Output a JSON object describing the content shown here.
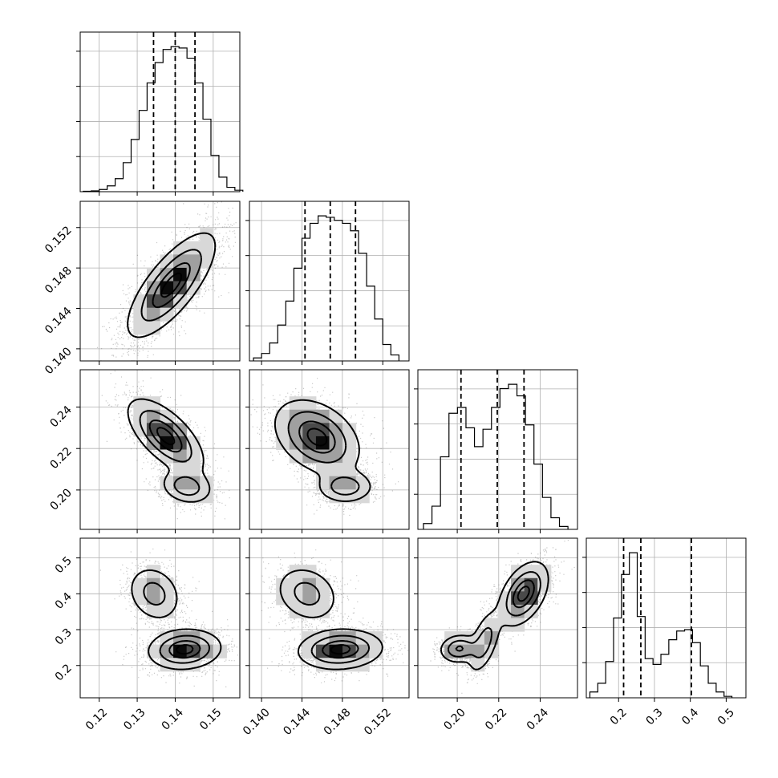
{
  "chart_data": {
    "type": "corner",
    "parameters": [
      {
        "range": [
          0.115,
          0.157
        ],
        "ticks": [
          0.12,
          0.13,
          0.14,
          0.15
        ],
        "tick_labels": [
          "0.12",
          "0.13",
          "0.14",
          "0.15"
        ],
        "quantiles": [
          0.1343,
          0.14,
          0.1452
        ],
        "hist": {
          "edges": [
            0.1158,
            0.1179,
            0.12,
            0.1221,
            0.1242,
            0.1263,
            0.1284,
            0.1305,
            0.1326,
            0.1347,
            0.1368,
            0.1389,
            0.141,
            0.1431,
            0.1452,
            0.1473,
            0.1494,
            0.1515,
            0.1536,
            0.1557,
            0.1578
          ],
          "counts": [
            0.3,
            0.6,
            1.5,
            4,
            9,
            20,
            36,
            56,
            75,
            89,
            98,
            100,
            99,
            92,
            75,
            50,
            25,
            10,
            3,
            1
          ]
        }
      },
      {
        "range": [
          0.1388,
          0.1546
        ],
        "ticks": [
          0.14,
          0.144,
          0.148,
          0.152
        ],
        "tick_labels": [
          "0.140",
          "0.144",
          "0.148",
          "0.152"
        ],
        "quantiles": [
          0.1443,
          0.1468,
          0.1493
        ],
        "hist": {
          "edges": [
            0.1392,
            0.14,
            0.1408,
            0.1416,
            0.1424,
            0.1432,
            0.144,
            0.1448,
            0.1456,
            0.1464,
            0.1472,
            0.148,
            0.1488,
            0.1496,
            0.1504,
            0.1512,
            0.152,
            0.1528,
            0.1536
          ],
          "counts": [
            2,
            5,
            12,
            24,
            40,
            62,
            82,
            92,
            97,
            96,
            94,
            92,
            87,
            72,
            50,
            28,
            11,
            4
          ]
        }
      },
      {
        "range": [
          0.181,
          0.258
        ],
        "ticks": [
          0.2,
          0.22,
          0.24
        ],
        "tick_labels": [
          "0.20",
          "0.22",
          "0.24"
        ],
        "quantiles": [
          0.2018,
          0.2193,
          0.2322
        ],
        "hist": {
          "edges": [
            0.1837,
            0.1878,
            0.1919,
            0.196,
            0.2001,
            0.2042,
            0.2083,
            0.2124,
            0.2165,
            0.2206,
            0.2247,
            0.2288,
            0.2329,
            0.237,
            0.2411,
            0.2452,
            0.2493,
            0.2534
          ],
          "counts": [
            4,
            16,
            50,
            80,
            84,
            70,
            57,
            69,
            84,
            97,
            100,
            92,
            72,
            45,
            22,
            8,
            2
          ]
        }
      },
      {
        "range": [
          0.11,
          0.555
        ],
        "ticks": [
          0.2,
          0.3,
          0.4,
          0.5
        ],
        "tick_labels": [
          "0.2",
          "0.3",
          "0.4",
          "0.5"
        ],
        "quantiles": [
          0.214,
          0.262,
          0.403
        ],
        "hist": {
          "edges": [
            0.12,
            0.142,
            0.164,
            0.186,
            0.208,
            0.23,
            0.252,
            0.274,
            0.296,
            0.318,
            0.34,
            0.362,
            0.384,
            0.406,
            0.428,
            0.45,
            0.472,
            0.494,
            0.516
          ],
          "counts": [
            4,
            10,
            25,
            55,
            85,
            100,
            56,
            27,
            23,
            30,
            40,
            46,
            47,
            38,
            22,
            10,
            4,
            1
          ]
        }
      }
    ],
    "pairs": [
      {
        "row": 1,
        "col": 0,
        "modes": [
          {
            "center": [
              0.139,
              0.1463
            ],
            "sigma": [
              0.0058,
              0.0026
            ],
            "rho": 0.75,
            "weight": 1.0
          }
        ],
        "contour_levels": [
          0.14,
          0.4,
          0.7,
          0.9
        ]
      },
      {
        "row": 2,
        "col": 0,
        "modes": [
          {
            "center": [
              0.1375,
              0.226
            ],
            "sigma": [
              0.005,
              0.009
            ],
            "rho": -0.65,
            "weight": 0.62
          },
          {
            "center": [
              0.143,
              0.2015
            ],
            "sigma": [
              0.0034,
              0.0042
            ],
            "rho": -0.2,
            "weight": 0.38
          }
        ],
        "contour_levels": [
          0.14,
          0.4,
          0.7,
          0.9
        ]
      },
      {
        "row": 2,
        "col": 1,
        "modes": [
          {
            "center": [
              0.1455,
              0.2255
            ],
            "sigma": [
              0.0021,
              0.009
            ],
            "rho": -0.35,
            "weight": 0.62
          },
          {
            "center": [
              0.1483,
              0.2015
            ],
            "sigma": [
              0.0014,
              0.004
            ],
            "rho": 0.0,
            "weight": 0.38
          }
        ],
        "contour_levels": [
          0.14,
          0.4,
          0.7,
          0.9
        ]
      },
      {
        "row": 3,
        "col": 0,
        "modes": [
          {
            "center": [
              0.1345,
              0.4
            ],
            "sigma": [
              0.0036,
              0.04
            ],
            "rho": -0.2,
            "weight": 0.35
          },
          {
            "center": [
              0.1425,
              0.245
            ],
            "sigma": [
              0.0048,
              0.028
            ],
            "rho": 0.1,
            "weight": 0.65
          }
        ],
        "contour_levels": [
          0.14,
          0.4,
          0.7,
          0.9
        ]
      },
      {
        "row": 3,
        "col": 1,
        "modes": [
          {
            "center": [
              0.1445,
              0.4
            ],
            "sigma": [
              0.0016,
              0.04
            ],
            "rho": -0.2,
            "weight": 0.35
          },
          {
            "center": [
              0.1478,
              0.245
            ],
            "sigma": [
              0.0021,
              0.028
            ],
            "rho": 0.1,
            "weight": 0.65
          }
        ],
        "contour_levels": [
          0.14,
          0.4,
          0.7,
          0.9
        ]
      },
      {
        "row": 3,
        "col": 2,
        "modes": [
          {
            "center": [
              0.201,
              0.247
            ],
            "sigma": [
              0.0048,
              0.02
            ],
            "rho": 0.1,
            "weight": 0.32
          },
          {
            "center": [
              0.213,
              0.265
            ],
            "sigma": [
              0.004,
              0.045
            ],
            "rho": 0.55,
            "weight": 0.25
          },
          {
            "center": [
              0.232,
              0.4
            ],
            "sigma": [
              0.006,
              0.045
            ],
            "rho": 0.45,
            "weight": 0.43
          }
        ],
        "contour_levels": [
          0.14,
          0.4,
          0.7,
          0.9
        ]
      }
    ],
    "colors": {
      "frame": "#000000",
      "grid": "#b0b0b0",
      "scatter": "#555555",
      "contour": "#000000",
      "density_fill": [
        "#ffffff",
        "#d8d8d8",
        "#a0a0a0",
        "#4a4a4a",
        "#0a0a0a"
      ]
    },
    "grid": true
  }
}
